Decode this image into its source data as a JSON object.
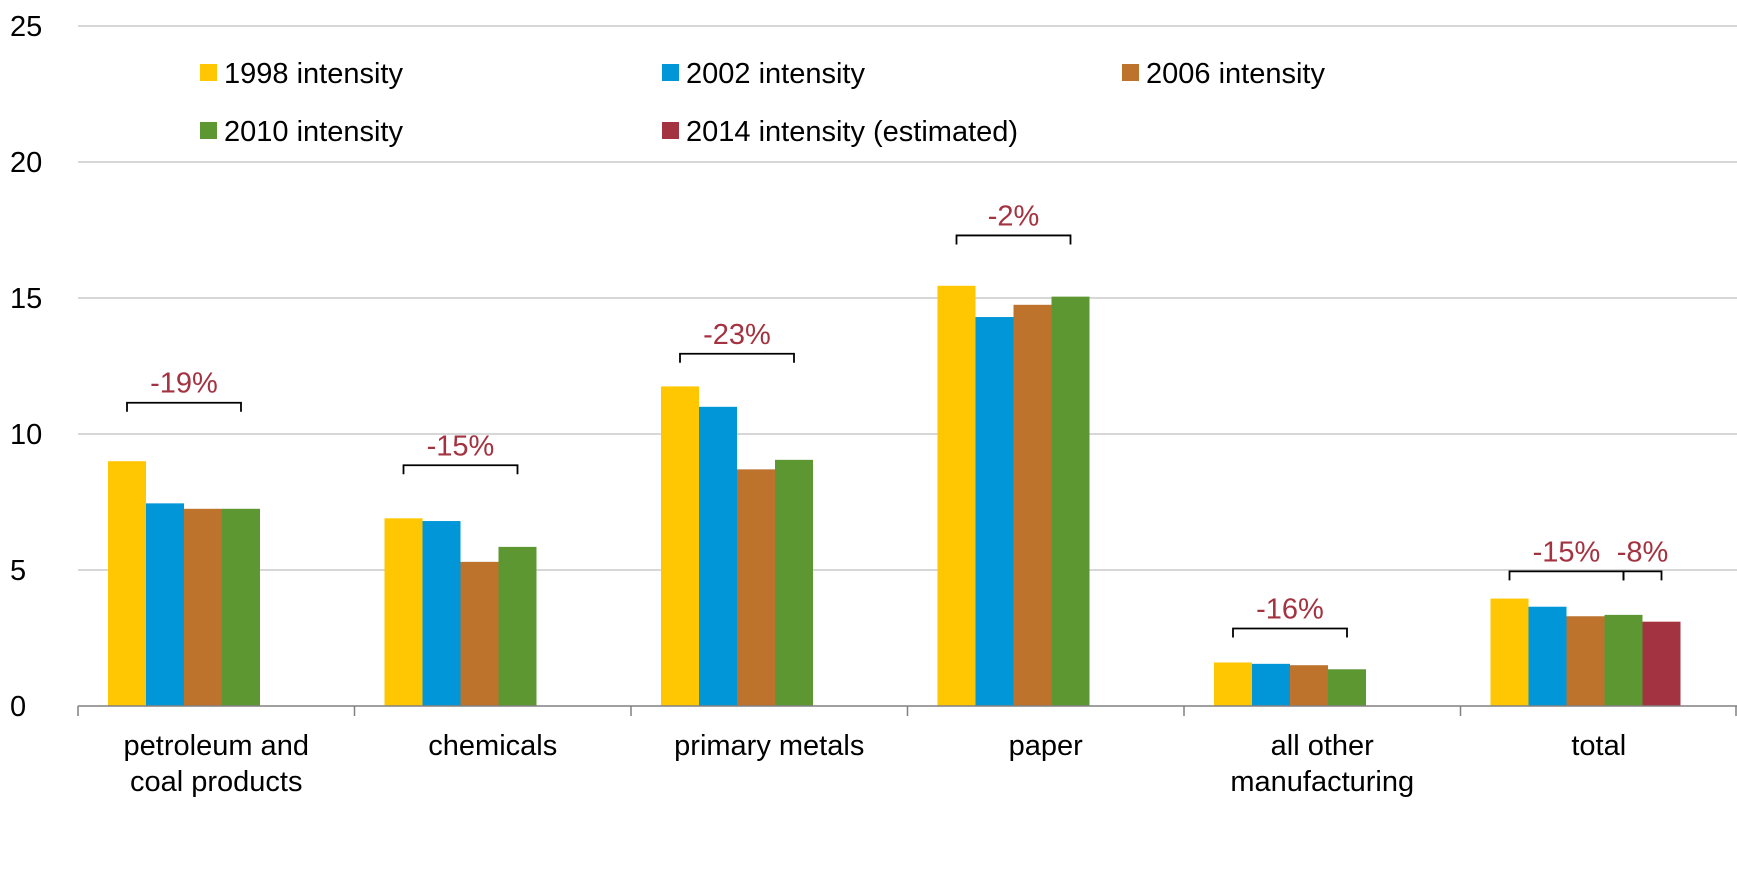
{
  "chart_data": {
    "type": "bar",
    "title": "",
    "xlabel": "",
    "ylabel": "",
    "ylim": [
      0,
      25
    ],
    "yticks": [
      0,
      5,
      10,
      15,
      20,
      25
    ],
    "grid": true,
    "legend_position": "top",
    "categories": [
      [
        "petroleum and",
        "coal products"
      ],
      [
        "chemicals"
      ],
      [
        "primary metals"
      ],
      [
        "paper"
      ],
      [
        "all other",
        "manufacturing"
      ],
      [
        "total"
      ]
    ],
    "series": [
      {
        "name": "1998 intensity",
        "color": "#FFC602",
        "values": [
          9.0,
          6.9,
          11.75,
          15.45,
          1.6,
          3.95
        ]
      },
      {
        "name": "2002 intensity",
        "color": "#0096D7",
        "values": [
          7.45,
          6.8,
          11.0,
          14.3,
          1.55,
          3.65
        ]
      },
      {
        "name": "2006 intensity",
        "color": "#BD732C",
        "values": [
          7.25,
          5.3,
          8.7,
          14.75,
          1.5,
          3.3
        ]
      },
      {
        "name": "2010 intensity",
        "color": "#5D9732",
        "values": [
          7.25,
          5.85,
          9.05,
          15.05,
          1.35,
          3.35
        ]
      },
      {
        "name": "2014 intensity (estimated)",
        "color": "#A33340",
        "values": [
          null,
          null,
          null,
          null,
          null,
          3.1
        ]
      }
    ],
    "annotations": [
      {
        "text": "-19%",
        "category": 0,
        "from_series": 0,
        "to_series": 3,
        "bracket_y": 11.15
      },
      {
        "text": "-15%",
        "category": 1,
        "from_series": 0,
        "to_series": 3,
        "bracket_y": 8.85
      },
      {
        "text": "-23%",
        "category": 2,
        "from_series": 0,
        "to_series": 3,
        "bracket_y": 12.95
      },
      {
        "text": "-2%",
        "category": 3,
        "from_series": 0,
        "to_series": 3,
        "bracket_y": 17.3
      },
      {
        "text": "-16%",
        "category": 4,
        "from_series": 0,
        "to_series": 3,
        "bracket_y": 2.85
      },
      {
        "text": "-15%",
        "category": 5,
        "from_series": 0,
        "to_series": 3,
        "bracket_y": 4.95
      },
      {
        "text": "-8%",
        "category": 5,
        "from_series": 3,
        "to_series": 4,
        "bracket_y": 4.95
      }
    ],
    "annotation_color": "#A33340"
  }
}
